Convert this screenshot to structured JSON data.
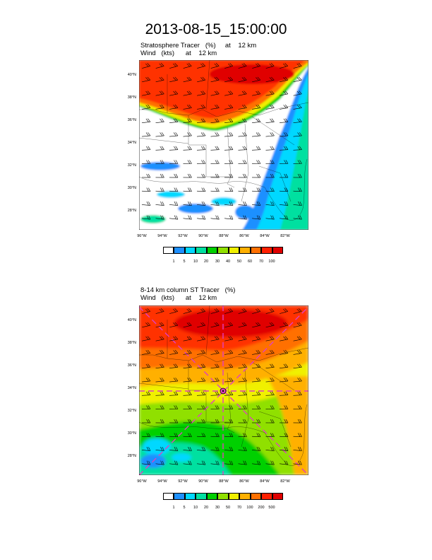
{
  "header": {
    "datetime": "2013-08-15_15:00:00"
  },
  "panels": [
    {
      "title_line1": "Stratosphere Tracer   (%)     at    12 km",
      "title_line2": "Wind   (kts)      at    12 km",
      "y_ticks": [
        "40°N",
        "38°N",
        "36°N",
        "34°N",
        "32°N",
        "30°N",
        "28°N"
      ],
      "x_ticks": [
        "96°W",
        "94°W",
        "92°W",
        "90°W",
        "88°W",
        "86°W",
        "84°W",
        "82°W"
      ],
      "colorbar_labels": [
        "1",
        "5",
        "10",
        "20",
        "30",
        "40",
        "50",
        "60",
        "70",
        "100"
      ],
      "colorbar_colors": [
        "#ffffff",
        "#1e90ff",
        "#00d8ff",
        "#00e0a0",
        "#00d000",
        "#90e000",
        "#f0f000",
        "#ffb000",
        "#ff7000",
        "#ff2000",
        "#e00000"
      ]
    },
    {
      "title_line1": "8-14 km column ST Tracer   (%)",
      "title_line2": "Wind   (kts)      at    12 km",
      "y_ticks": [
        "40°N",
        "38°N",
        "36°N",
        "34°N",
        "32°N",
        "30°N",
        "28°N"
      ],
      "x_ticks": [
        "96°W",
        "94°W",
        "92°W",
        "90°W",
        "88°W",
        "86°W",
        "84°W",
        "82°W"
      ],
      "colorbar_labels": [
        "1",
        "5",
        "10",
        "20",
        "30",
        "50",
        "70",
        "100",
        "200",
        "500"
      ],
      "colorbar_colors": [
        "#ffffff",
        "#1e90ff",
        "#00d8ff",
        "#00e0a0",
        "#00d000",
        "#90e000",
        "#f0f000",
        "#ffb000",
        "#ff7000",
        "#ff2000",
        "#e00000"
      ]
    }
  ]
}
